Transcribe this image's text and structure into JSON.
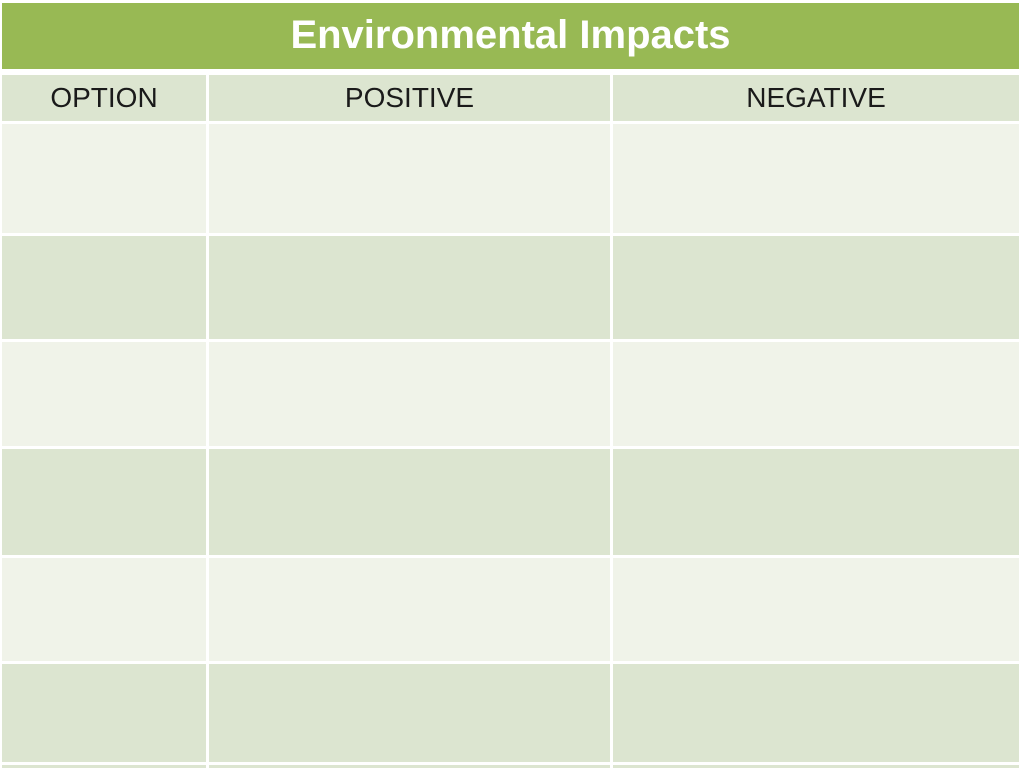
{
  "slide": {
    "title": "Environmental Impacts"
  },
  "table": {
    "headers": [
      "OPTION",
      "POSITIVE",
      "NEGATIVE"
    ],
    "rows": [
      [
        "",
        "",
        ""
      ],
      [
        "",
        "",
        ""
      ],
      [
        "",
        "",
        ""
      ],
      [
        "",
        "",
        ""
      ],
      [
        "",
        "",
        ""
      ],
      [
        "",
        "",
        ""
      ],
      [
        "",
        "",
        ""
      ]
    ]
  },
  "colors": {
    "title_bar_bg": "#98B954",
    "title_text": "#FFFFFF",
    "header_row_bg": "#DCE5D0",
    "row_light_bg": "#F0F3E9",
    "row_dark_bg": "#DCE5D0",
    "separator": "#FFFFFF",
    "header_text": "#1A1A1A"
  }
}
